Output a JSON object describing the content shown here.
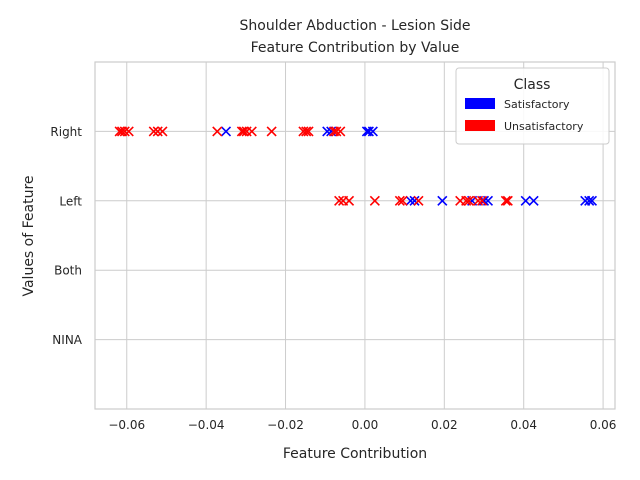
{
  "chart_data": {
    "type": "scatter",
    "title_lines": [
      "Shoulder Abduction - Lesion Side",
      "Feature Contribution by Value"
    ],
    "xlabel": "Feature Contribution",
    "ylabel": "Values of Feature",
    "xlim": [
      -0.068,
      0.063
    ],
    "x_ticks": [
      -0.06,
      -0.04,
      -0.02,
      0.0,
      0.02,
      0.04,
      0.06
    ],
    "x_tick_labels": [
      "−0.06",
      "−0.04",
      "−0.02",
      "0.00",
      "0.02",
      "0.04",
      "0.06"
    ],
    "categories": [
      "NINA",
      "Both",
      "Left",
      "Right"
    ],
    "ylim": [
      -1,
      4
    ],
    "grid": true,
    "marker": "x",
    "legend": {
      "title": "Class",
      "position": "top-right",
      "entries": [
        {
          "label": "Satisfactory",
          "color": "#0000ff"
        },
        {
          "label": "Unsatisfactory",
          "color": "#ff0000"
        }
      ]
    },
    "series": [
      {
        "name": "Satisfactory",
        "color": "#0000ff",
        "points": [
          {
            "x": -0.035,
            "y": "Right"
          },
          {
            "x": -0.0095,
            "y": "Right"
          },
          {
            "x": -0.0085,
            "y": "Right"
          },
          {
            "x": 0.0005,
            "y": "Right"
          },
          {
            "x": 0.001,
            "y": "Right"
          },
          {
            "x": 0.002,
            "y": "Right"
          },
          {
            "x": 0.0115,
            "y": "Left"
          },
          {
            "x": 0.0125,
            "y": "Left"
          },
          {
            "x": 0.0195,
            "y": "Left"
          },
          {
            "x": 0.027,
            "y": "Left"
          },
          {
            "x": 0.03,
            "y": "Left"
          },
          {
            "x": 0.031,
            "y": "Left"
          },
          {
            "x": 0.0405,
            "y": "Left"
          },
          {
            "x": 0.0425,
            "y": "Left"
          },
          {
            "x": 0.0555,
            "y": "Left"
          },
          {
            "x": 0.0565,
            "y": "Left"
          },
          {
            "x": 0.0572,
            "y": "Left"
          }
        ]
      },
      {
        "name": "Unsatisfactory",
        "color": "#ff0000",
        "points": [
          {
            "x": -0.0618,
            "y": "Right"
          },
          {
            "x": -0.0612,
            "y": "Right"
          },
          {
            "x": -0.0605,
            "y": "Right"
          },
          {
            "x": -0.0595,
            "y": "Right"
          },
          {
            "x": -0.0532,
            "y": "Right"
          },
          {
            "x": -0.0522,
            "y": "Right"
          },
          {
            "x": -0.051,
            "y": "Right"
          },
          {
            "x": -0.0372,
            "y": "Right"
          },
          {
            "x": -0.031,
            "y": "Right"
          },
          {
            "x": -0.0305,
            "y": "Right"
          },
          {
            "x": -0.0298,
            "y": "Right"
          },
          {
            "x": -0.0285,
            "y": "Right"
          },
          {
            "x": -0.0235,
            "y": "Right"
          },
          {
            "x": -0.0155,
            "y": "Right"
          },
          {
            "x": -0.0148,
            "y": "Right"
          },
          {
            "x": -0.0142,
            "y": "Right"
          },
          {
            "x": -0.0078,
            "y": "Right"
          },
          {
            "x": -0.0072,
            "y": "Right"
          },
          {
            "x": -0.0062,
            "y": "Right"
          },
          {
            "x": -0.0065,
            "y": "Left"
          },
          {
            "x": -0.0055,
            "y": "Left"
          },
          {
            "x": -0.004,
            "y": "Left"
          },
          {
            "x": 0.0025,
            "y": "Left"
          },
          {
            "x": 0.0088,
            "y": "Left"
          },
          {
            "x": 0.0095,
            "y": "Left"
          },
          {
            "x": 0.0135,
            "y": "Left"
          },
          {
            "x": 0.024,
            "y": "Left"
          },
          {
            "x": 0.0255,
            "y": "Left"
          },
          {
            "x": 0.0262,
            "y": "Left"
          },
          {
            "x": 0.0285,
            "y": "Left"
          },
          {
            "x": 0.0295,
            "y": "Left"
          },
          {
            "x": 0.0355,
            "y": "Left"
          },
          {
            "x": 0.036,
            "y": "Left"
          }
        ]
      }
    ]
  }
}
